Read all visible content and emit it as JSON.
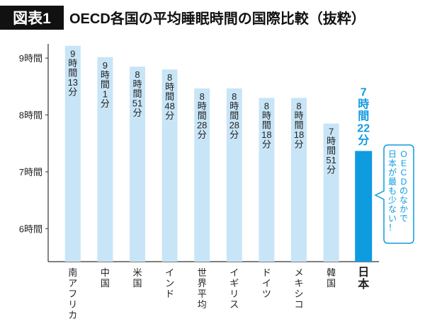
{
  "chart_data": {
    "type": "bar",
    "badge": "図表1",
    "title": "OECD各国の平均睡眠時間の国際比較（抜粋）",
    "categories": [
      "南アフリカ",
      "中国",
      "米国",
      "インド",
      "世界平均",
      "イギリス",
      "ドイツ",
      "メキシコ",
      "韓国",
      "日本"
    ],
    "values": [
      9.2167,
      9.0167,
      8.85,
      8.8,
      8.4667,
      8.4667,
      8.3,
      8.3,
      7.85,
      7.3667
    ],
    "value_labels": [
      "9時間13分",
      "9時間1分",
      "8時間51分",
      "8時間48分",
      "8時間28分",
      "8時間28分",
      "8時間18分",
      "8時間18分",
      "7時間51分",
      "7時間22分"
    ],
    "colors": [
      "#c8e5f7",
      "#c8e5f7",
      "#c8e5f7",
      "#c8e5f7",
      "#c8e5f7",
      "#c8e5f7",
      "#c8e5f7",
      "#c8e5f7",
      "#c8e5f7",
      "#0f9be0"
    ],
    "ylim": [
      5.42,
      9.4
    ],
    "yticks": [
      {
        "value": 6,
        "label": "6時間"
      },
      {
        "value": 7,
        "label": "7時間"
      },
      {
        "value": 8,
        "label": "8時間"
      },
      {
        "value": 9,
        "label": "9時間"
      }
    ],
    "annotation": [
      "OECDのなかで",
      "日本が最も少ない！"
    ]
  }
}
